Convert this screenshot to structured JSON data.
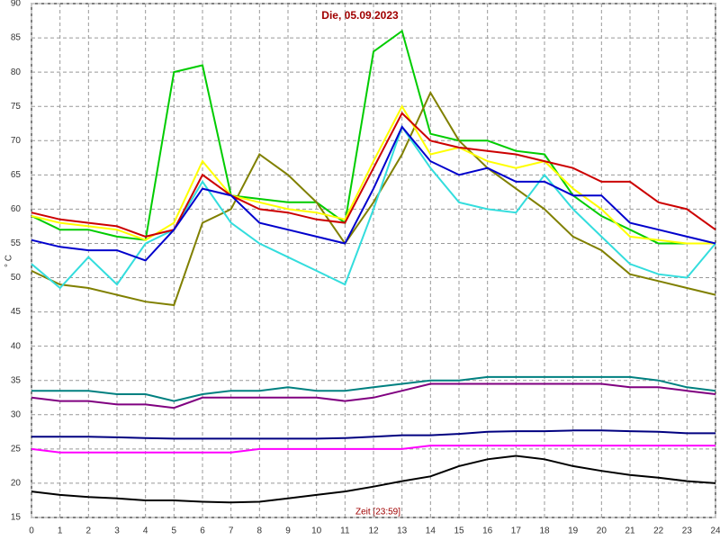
{
  "chart_data": {
    "type": "line",
    "title": "Die, 05.09.2023",
    "x_label": "Zeit [23:59]",
    "y_label": "° C",
    "x": [
      0,
      1,
      2,
      3,
      4,
      5,
      6,
      7,
      8,
      9,
      10,
      11,
      12,
      13,
      14,
      15,
      16,
      17,
      18,
      19,
      20,
      21,
      22,
      23,
      24
    ],
    "xlim": [
      0,
      24
    ],
    "xticks": [
      0,
      1,
      2,
      3,
      4,
      5,
      6,
      7,
      8,
      9,
      10,
      11,
      12,
      13,
      14,
      15,
      16,
      17,
      18,
      19,
      20,
      21,
      22,
      23,
      24
    ],
    "ylim": [
      15,
      90
    ],
    "yticks": [
      15,
      20,
      25,
      30,
      35,
      40,
      45,
      50,
      55,
      60,
      65,
      70,
      75,
      80,
      85,
      90
    ],
    "grid": true,
    "series": [
      {
        "color": "#00cc00",
        "values": [
          59,
          57,
          57,
          56,
          55.5,
          80,
          81,
          62,
          61.5,
          61,
          61,
          58,
          83,
          86,
          71,
          70,
          70,
          68.5,
          68,
          62,
          59,
          57,
          55,
          55,
          55
        ]
      },
      {
        "color": "#808000",
        "values": [
          51,
          49,
          48.5,
          47.5,
          46.5,
          46,
          58,
          60,
          68,
          65,
          61,
          55,
          61,
          68,
          77,
          70,
          66,
          63,
          60,
          56,
          54,
          50.5,
          49.5,
          48.5,
          47.5
        ]
      },
      {
        "color": "#ffff00",
        "values": [
          59,
          58,
          57.5,
          57,
          55.5,
          58,
          67,
          62,
          61,
          60,
          59.5,
          58.5,
          67,
          75,
          68,
          69,
          67,
          66,
          67,
          63,
          60,
          56,
          55.5,
          55,
          55
        ]
      },
      {
        "color": "#33dddd",
        "values": [
          52,
          48.5,
          53,
          49,
          55,
          57,
          64,
          58,
          55,
          53,
          51,
          49,
          60,
          72,
          66,
          61,
          60,
          59.5,
          65,
          60,
          56,
          52,
          50.5,
          50,
          55
        ]
      },
      {
        "color": "#cc0000",
        "values": [
          59.5,
          58.5,
          58,
          57.5,
          56,
          57,
          65,
          62,
          60,
          59.5,
          58.5,
          58,
          66,
          74,
          70,
          69,
          68.5,
          68,
          67,
          66,
          64,
          64,
          61,
          60,
          57
        ]
      },
      {
        "color": "#0000cc",
        "values": [
          55.5,
          54.5,
          54,
          54,
          52.5,
          57,
          63,
          62,
          58,
          57,
          56,
          55,
          63,
          72,
          67,
          65,
          66,
          64,
          64,
          62,
          62,
          58,
          57,
          56,
          55
        ]
      },
      {
        "color": "#008080",
        "values": [
          33.5,
          33.5,
          33.5,
          33,
          33,
          32,
          33,
          33.5,
          33.5,
          34,
          33.5,
          33.5,
          34,
          34.5,
          35,
          35,
          35.5,
          35.5,
          35.5,
          35.5,
          35.5,
          35.5,
          35,
          34,
          33.5
        ]
      },
      {
        "color": "#800080",
        "values": [
          32.5,
          32,
          32,
          31.5,
          31.5,
          31,
          32.5,
          32.5,
          32.5,
          32.5,
          32.5,
          32,
          32.5,
          33.5,
          34.5,
          34.5,
          34.5,
          34.5,
          34.5,
          34.5,
          34.5,
          34,
          34,
          33.5,
          33
        ]
      },
      {
        "color": "#000080",
        "values": [
          26.8,
          26.8,
          26.8,
          26.7,
          26.6,
          26.5,
          26.5,
          26.5,
          26.5,
          26.5,
          26.5,
          26.6,
          26.8,
          27,
          27,
          27.2,
          27.5,
          27.6,
          27.6,
          27.7,
          27.7,
          27.6,
          27.5,
          27.3,
          27.3
        ]
      },
      {
        "color": "#ff00ff",
        "values": [
          25,
          24.5,
          24.5,
          24.5,
          24.5,
          24.5,
          24.5,
          24.5,
          25,
          25,
          25,
          25,
          25,
          25,
          25.5,
          25.5,
          25.5,
          25.5,
          25.5,
          25.5,
          25.5,
          25.5,
          25.5,
          25.5,
          25.5
        ]
      },
      {
        "color": "#000000",
        "values": [
          18.8,
          18.3,
          18,
          17.8,
          17.5,
          17.5,
          17.3,
          17.2,
          17.3,
          17.8,
          18.3,
          18.8,
          19.5,
          20.3,
          21,
          22.5,
          23.5,
          24,
          23.5,
          22.5,
          21.8,
          21.2,
          20.8,
          20.3,
          20
        ]
      }
    ]
  }
}
